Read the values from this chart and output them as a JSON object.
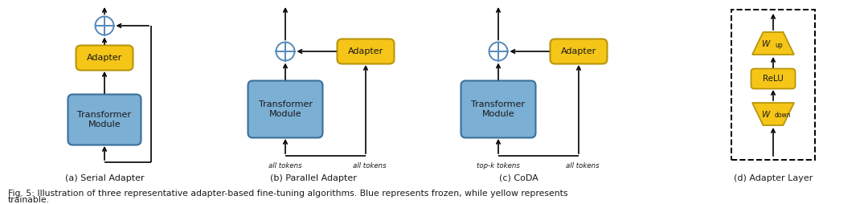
{
  "blue_color": "#7BAFD4",
  "yellow_color": "#F5C518",
  "blue_edge": "#3A6F9A",
  "yellow_edge": "#B8960A",
  "circle_edge": "#5588BB",
  "text_color": "#1a1a1a",
  "bg_color": "#ffffff",
  "caption_line1": "Fig. 5: Illustration of three representative adapter-based fine-tuning algorithms. Blue represents frozen, while yellow represents",
  "caption_line2": "trainable.",
  "sub_titles": [
    "(a) Serial Adapter",
    "(b) Parallel Adapter",
    "(c) CoDA",
    "(d) Adapter Layer"
  ],
  "token_labels_b": [
    "all tokens",
    "all tokens"
  ],
  "token_labels_c": [
    "top-k tokens",
    "all tokens"
  ]
}
